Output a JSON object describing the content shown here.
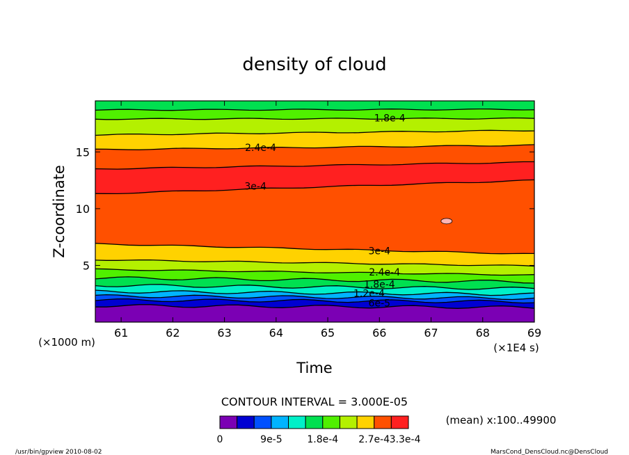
{
  "chart_data": {
    "type": "heatmap",
    "title": "density of cloud",
    "xlabel": "Time",
    "ylabel": "Z-coordinate",
    "x_unit": "(×1E4 s)",
    "y_unit": "(×1000 m)",
    "xlim": [
      60.5,
      69
    ],
    "ylim": [
      0,
      19.5
    ],
    "x_ticks": [
      "61",
      "62",
      "63",
      "64",
      "65",
      "66",
      "67",
      "68",
      "69"
    ],
    "y_ticks": [
      "5",
      "10",
      "15"
    ],
    "grid": false,
    "contour_interval_text": "CONTOUR INTERVAL = 3.000E-05",
    "mean_text": "(mean) x:100..49900",
    "colorbar_labels": [
      "0",
      "9e-5",
      "1.8e-4",
      "2.7e-4",
      "3.3e-4"
    ],
    "colorbar_colors": [
      "#7b00b4",
      "#0000d2",
      "#0050ff",
      "#00b4ff",
      "#00f0c8",
      "#00e050",
      "#50f000",
      "#b4f000",
      "#ffd200",
      "#ff5000",
      "#ff2020"
    ],
    "contour_labels": [
      "1.8e-4",
      "2.4e-4",
      "3e-4",
      "3e-4",
      "2.4e-4",
      "1.8e-4",
      "1.2e-4",
      "6e-5"
    ],
    "bands": [
      {
        "level": "0",
        "color": "#7b00b4",
        "z_left": 0.0,
        "z_right": 0.0
      },
      {
        "level": "3e-5",
        "color": "#0000d2",
        "z_left": 1.45,
        "z_right": 1.3
      },
      {
        "level": "6e-5",
        "color": "#0050ff",
        "z_left": 1.95,
        "z_right": 1.8
      },
      {
        "level": "9e-5",
        "color": "#00b4ff",
        "z_left": 2.3,
        "z_right": 2.1
      },
      {
        "level": "1.2e-4",
        "color": "#00f0c8",
        "z_left": 2.7,
        "z_right": 2.45
      },
      {
        "level": "1.5e-4",
        "color": "#00e050",
        "z_left": 3.25,
        "z_right": 2.95
      },
      {
        "level": "1.8e-4",
        "color": "#50f000",
        "z_left": 3.9,
        "z_right": 3.55
      },
      {
        "level": "2.1e-4",
        "color": "#b4f000",
        "z_left": 4.65,
        "z_right": 4.15
      },
      {
        "level": "2.4e-4",
        "color": "#ffd200",
        "z_left": 5.5,
        "z_right": 4.95
      },
      {
        "level": "2.7e-4",
        "color": "#ff5000",
        "z_left": 6.9,
        "z_right": 6.0
      },
      {
        "level": "3e-4",
        "color": "#ff2020",
        "z_left": 11.3,
        "z_right": 12.5
      },
      {
        "level": "2.7e-4",
        "color": "#ff5000",
        "z_left": 13.5,
        "z_right": 14.1
      },
      {
        "level": "2.4e-4",
        "color": "#ffd200",
        "z_left": 15.2,
        "z_right": 15.6
      },
      {
        "level": "2.1e-4",
        "color": "#b4f000",
        "z_left": 16.5,
        "z_right": 16.9
      },
      {
        "level": "1.8e-4",
        "color": "#50f000",
        "z_left": 17.9,
        "z_right": 17.95
      },
      {
        "level": "1.5e-4",
        "color": "#00e050",
        "z_left": 18.7,
        "z_right": 18.75
      }
    ],
    "top_color": "#00f0c8",
    "peak_blob": {
      "x": 67.3,
      "z": 8.9,
      "color": "#ffb4b4"
    }
  },
  "footer": {
    "left": "/usr/bin/gpview   2010-08-02",
    "right": "MarsCond_DensCloud.nc@DensCloud"
  }
}
